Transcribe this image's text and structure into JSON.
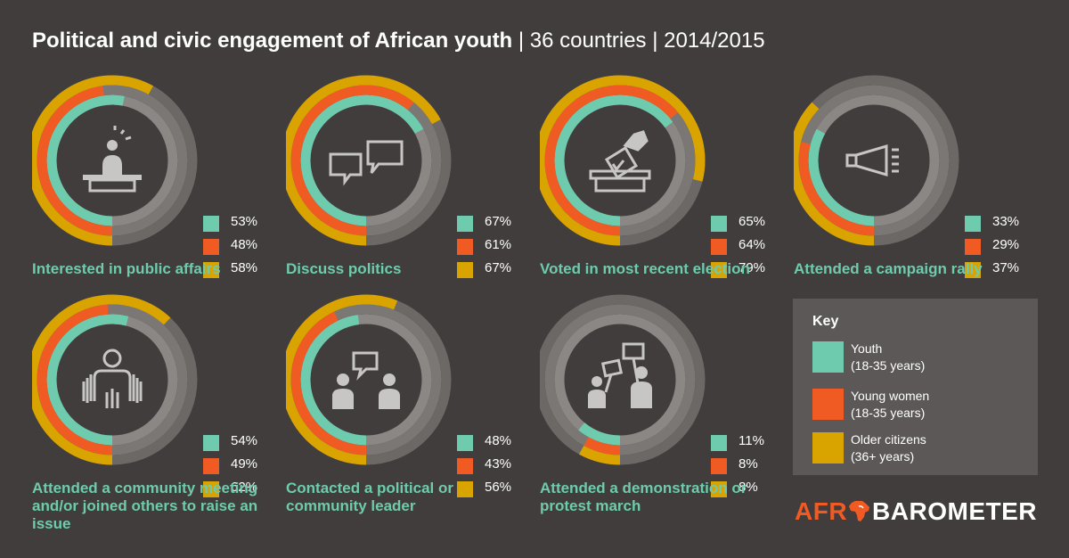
{
  "title": {
    "main": "Political and civic engagement of African youth",
    "sub": " | 36 countries | 2014/2015"
  },
  "colors": {
    "background": "#403d3c",
    "youth": "#6fcbad",
    "young_women": "#f05a23",
    "older_citizens": "#d9a300",
    "track": "#7a7775",
    "icon": "#c8c6c5"
  },
  "chart_data": {
    "type": "radial bar",
    "series": [
      {
        "name": "Youth",
        "values": [
          53,
          67,
          65,
          33,
          54,
          48,
          11
        ]
      },
      {
        "name": "Young women",
        "values": [
          48,
          61,
          64,
          29,
          49,
          43,
          8
        ]
      },
      {
        "name": "Older citizens",
        "values": [
          58,
          67,
          79,
          37,
          62,
          56,
          8
        ]
      }
    ],
    "categories": [
      "Interested in public affairs",
      "Discuss politics",
      "Voted in most recent election",
      "Attended a campaign rally",
      "Attended a community meeting and/or joined others to raise an issue",
      "Contacted a political or community leader",
      "Attended a demonstration or protest march"
    ],
    "value_unit": "%",
    "range": [
      0,
      100
    ]
  },
  "panels": [
    {
      "label": "Interested in public affairs",
      "icon": "podium-speaker-icon",
      "youth_text": "53%",
      "young_women_text": "48%",
      "older_text": "58%"
    },
    {
      "label": "Discuss politics",
      "icon": "speech-bubbles-icon",
      "youth_text": "67%",
      "young_women_text": "61%",
      "older_text": "67%"
    },
    {
      "label": "Voted in most recent election",
      "icon": "ballot-box-icon",
      "youth_text": "65%",
      "young_women_text": "64%",
      "older_text": "79%"
    },
    {
      "label": "Attended a campaign rally",
      "icon": "megaphone-icon",
      "youth_text": "33%",
      "young_women_text": "29%",
      "older_text": "37%"
    },
    {
      "label": "Attended a community meeting and/or joined others to raise an issue",
      "icon": "community-meeting-icon",
      "youth_text": "54%",
      "young_women_text": "49%",
      "older_text": "62%"
    },
    {
      "label": "Contacted a political or community leader",
      "icon": "two-people-talking-icon",
      "youth_text": "48%",
      "young_women_text": "43%",
      "older_text": "56%"
    },
    {
      "label": "Attended a demonstration or protest march",
      "icon": "protest-signs-icon",
      "youth_text": "11%",
      "young_women_text": "8%",
      "older_text": "8%"
    }
  ],
  "key": {
    "title": "Key",
    "items": [
      {
        "line1": "Youth",
        "line2": "(18-35 years)"
      },
      {
        "line1": "Young women",
        "line2": "(18-35 years)"
      },
      {
        "line1": "Older citizens",
        "line2": "(36+ years)"
      }
    ]
  },
  "logo": {
    "part1": "AFR",
    "part2": "BAROMETER",
    "map_icon": "africa-map-icon"
  }
}
